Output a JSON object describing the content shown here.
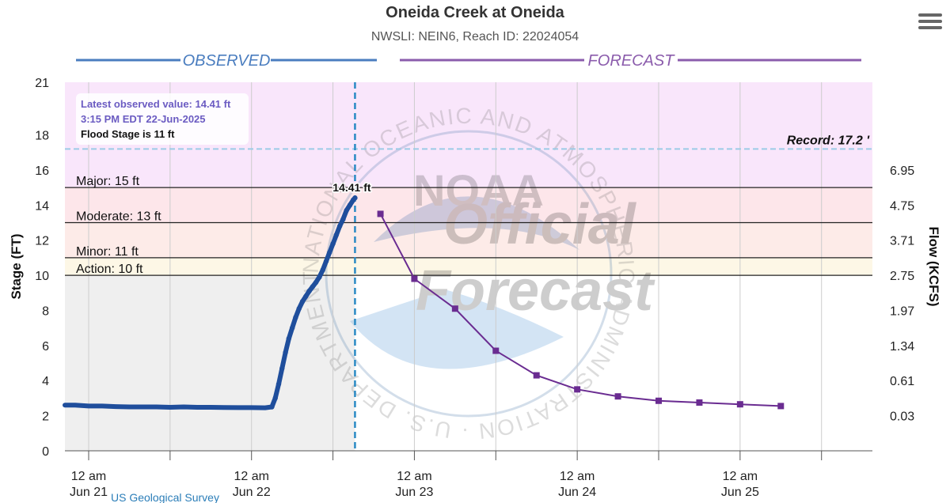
{
  "menu": {
    "icon": "hamburger-menu-icon"
  },
  "info_box": {
    "line1": "Latest observed value: 14.41 ft",
    "line2": "3:15 PM EDT 22-Jun-2025",
    "line3": "Flood Stage is 11 ft"
  },
  "colors": {
    "observed": "#1f4e9c",
    "forecast": "#6a2c91",
    "observed_banner": "#4a7dbf",
    "forecast_banner": "#8b5cac",
    "record_band": "#f9e6fb",
    "major_band": "#fde6ea",
    "moderate_band": "#fdebe8",
    "minor_band": "#fdf7e6",
    "observed_bg": "#efefef"
  },
  "chart_data": {
    "type": "line",
    "title": "Oneida Creek at Oneida",
    "subtitle": "NWSLI: NEIN6, Reach ID: 22024054",
    "ylabel": "Stage (FT)",
    "y2label": "Flow (KCFS)",
    "ylim": [
      0,
      21
    ],
    "yticks": [
      0,
      2,
      4,
      6,
      8,
      10,
      12,
      14,
      16,
      18,
      21
    ],
    "y2ticks": [
      {
        "stage": 2,
        "label": "0.03"
      },
      {
        "stage": 4,
        "label": "0.61"
      },
      {
        "stage": 6,
        "label": "1.34"
      },
      {
        "stage": 8,
        "label": "1.97"
      },
      {
        "stage": 10,
        "label": "2.75"
      },
      {
        "stage": 12,
        "label": "3.71"
      },
      {
        "stage": 14,
        "label": "4.75"
      },
      {
        "stage": 16,
        "label": "6.95"
      }
    ],
    "x_unit": "hours since 2025-06-21 00:00 EDT",
    "xlim": [
      -3.5,
      115.5
    ],
    "xticks": [
      {
        "x": 0,
        "line1": "12 am",
        "line2": "Jun 21"
      },
      {
        "x": 24,
        "line1": "12 am",
        "line2": "Jun 22"
      },
      {
        "x": 48,
        "line1": "12 am",
        "line2": "Jun 23"
      },
      {
        "x": 72,
        "line1": "12 am",
        "line2": "Jun 24"
      },
      {
        "x": 96,
        "line1": "12 am",
        "line2": "Jun 25"
      }
    ],
    "minor_xticks": [
      12,
      36,
      60,
      84,
      108
    ],
    "banners": {
      "observed": "OBSERVED",
      "forecast": "FORECAST"
    },
    "thresholds": [
      {
        "name": "Major",
        "label": "Major: 15 ft",
        "stage": 15
      },
      {
        "name": "Moderate",
        "label": "Moderate: 13 ft",
        "stage": 13
      },
      {
        "name": "Minor",
        "label": "Minor: 11 ft",
        "stage": 11
      },
      {
        "name": "Action",
        "label": "Action: 10 ft",
        "stage": 10
      }
    ],
    "record": {
      "stage": 17.2,
      "label": "Record: 17.2 '"
    },
    "now_x": 39.25,
    "latest_label": "14.41 ft",
    "credit": "US Geological Survey",
    "watermark": {
      "line1": "NOAA",
      "line2": "Official",
      "line3": "Forecast",
      "seal_text": "NATIONAL OCEANIC AND ATMOSPHERIC ADMINISTRATION · U.S. DEPARTMENT OF COMMERCE"
    },
    "series": [
      {
        "name": "Observed",
        "x": [
          -3.5,
          -2,
          0,
          2,
          4,
          6,
          8,
          10,
          12,
          14,
          16,
          18,
          20,
          22,
          24,
          26,
          27,
          27.5,
          28,
          28.5,
          29,
          29.5,
          30,
          30.5,
          31,
          31.5,
          32,
          32.5,
          33,
          33.5,
          34,
          34.5,
          35,
          35.5,
          36,
          36.5,
          37,
          37.5,
          38,
          38.5,
          39,
          39.25
        ],
        "y": [
          2.6,
          2.6,
          2.55,
          2.55,
          2.52,
          2.5,
          2.5,
          2.5,
          2.48,
          2.5,
          2.48,
          2.48,
          2.47,
          2.46,
          2.46,
          2.45,
          2.5,
          3.0,
          3.8,
          4.7,
          5.6,
          6.4,
          7.0,
          7.6,
          8.1,
          8.5,
          8.8,
          9.1,
          9.35,
          9.6,
          9.9,
          10.3,
          10.8,
          11.3,
          11.8,
          12.3,
          12.8,
          13.2,
          13.7,
          14.0,
          14.3,
          14.41
        ]
      },
      {
        "name": "Forecast",
        "x": [
          43,
          48,
          54,
          60,
          66,
          72,
          78,
          84,
          90,
          96,
          102
        ],
        "y": [
          13.5,
          9.8,
          8.1,
          5.7,
          4.3,
          3.5,
          3.1,
          2.85,
          2.75,
          2.65,
          2.55
        ]
      }
    ]
  }
}
